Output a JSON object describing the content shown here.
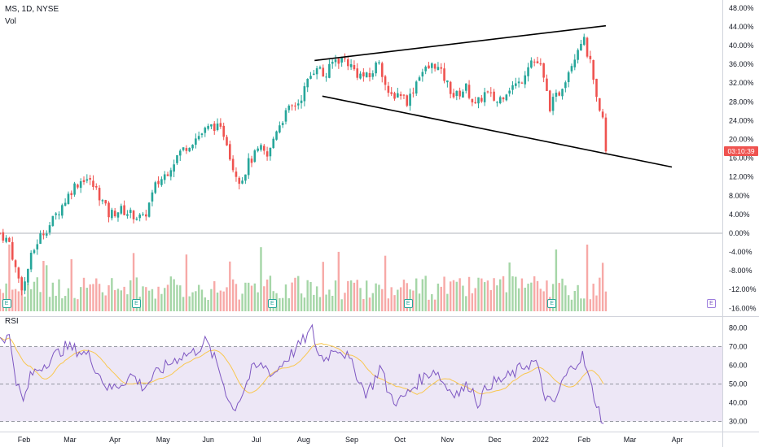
{
  "header": {
    "symbol_line": "MS, 1D, NYSE",
    "volume_label": "Vol"
  },
  "rsi_label": "RSI",
  "price_badge": {
    "text": "03:10:39",
    "color": "#ef5350"
  },
  "colors": {
    "up": "#26a69a",
    "down": "#ef5350",
    "vol_up": "#a5d6a7",
    "vol_down": "#f7a9a7",
    "rsi_line": "#7e57c2",
    "rsi_ma": "#f9c74f",
    "rsi_band": "#ede7f6",
    "trendline": "#000000"
  },
  "icons": {
    "earnings_marker": "E",
    "event_marker": "E"
  },
  "chart_data": [
    {
      "type": "candlestick",
      "title": "",
      "y_axis": {
        "unit": "percent",
        "ylim": [
          -17.5,
          49
        ],
        "ticks": [
          "48.00%",
          "44.00%",
          "40.00%",
          "36.00%",
          "32.00%",
          "28.00%",
          "24.00%",
          "20.00%",
          "16.00%",
          "12.00%",
          "8.00%",
          "4.00%",
          "0.00%",
          "-4.00%",
          "-8.00%",
          "-12.00%",
          "-16.00%"
        ]
      },
      "x_axis": {
        "ticks": [
          "Feb",
          "Mar",
          "Apr",
          "May",
          "Jun",
          "Jul",
          "Aug",
          "Sep",
          "Oct",
          "Nov",
          "Dec",
          "2022",
          "Feb",
          "Mar",
          "Apr"
        ],
        "tick_days": [
          31,
          90,
          148,
          210,
          268,
          330,
          391,
          453,
          515,
          576,
          637,
          696,
          752,
          811,
          872
        ],
        "xlim": [
          0,
          930
        ]
      },
      "series_anchors": [
        {
          "day": 0,
          "value": 0
        },
        {
          "day": 12,
          "value": -2
        },
        {
          "day": 22,
          "value": -9
        },
        {
          "day": 30,
          "value": -12
        },
        {
          "day": 38,
          "value": -6
        },
        {
          "day": 50,
          "value": -1
        },
        {
          "day": 65,
          "value": 2
        },
        {
          "day": 80,
          "value": 6
        },
        {
          "day": 95,
          "value": 10
        },
        {
          "day": 110,
          "value": 12
        },
        {
          "day": 125,
          "value": 9
        },
        {
          "day": 140,
          "value": 4
        },
        {
          "day": 155,
          "value": 5
        },
        {
          "day": 170,
          "value": 4
        },
        {
          "day": 185,
          "value": 3
        },
        {
          "day": 200,
          "value": 10
        },
        {
          "day": 215,
          "value": 13
        },
        {
          "day": 230,
          "value": 17
        },
        {
          "day": 250,
          "value": 20
        },
        {
          "day": 265,
          "value": 22
        },
        {
          "day": 275,
          "value": 23
        },
        {
          "day": 290,
          "value": 21
        },
        {
          "day": 300,
          "value": 14
        },
        {
          "day": 310,
          "value": 11
        },
        {
          "day": 320,
          "value": 15
        },
        {
          "day": 335,
          "value": 18
        },
        {
          "day": 345,
          "value": 16
        },
        {
          "day": 355,
          "value": 22
        },
        {
          "day": 370,
          "value": 26
        },
        {
          "day": 385,
          "value": 28
        },
        {
          "day": 398,
          "value": 33
        },
        {
          "day": 408,
          "value": 36
        },
        {
          "day": 418,
          "value": 33
        },
        {
          "day": 430,
          "value": 37
        },
        {
          "day": 445,
          "value": 37
        },
        {
          "day": 460,
          "value": 34
        },
        {
          "day": 475,
          "value": 33
        },
        {
          "day": 488,
          "value": 37
        },
        {
          "day": 500,
          "value": 29
        },
        {
          "day": 515,
          "value": 30
        },
        {
          "day": 525,
          "value": 28
        },
        {
          "day": 540,
          "value": 34
        },
        {
          "day": 560,
          "value": 36
        },
        {
          "day": 572,
          "value": 33
        },
        {
          "day": 585,
          "value": 29
        },
        {
          "day": 600,
          "value": 31
        },
        {
          "day": 612,
          "value": 27
        },
        {
          "day": 625,
          "value": 30
        },
        {
          "day": 640,
          "value": 28
        },
        {
          "day": 655,
          "value": 31
        },
        {
          "day": 670,
          "value": 32
        },
        {
          "day": 682,
          "value": 37
        },
        {
          "day": 695,
          "value": 36
        },
        {
          "day": 708,
          "value": 27
        },
        {
          "day": 720,
          "value": 30
        },
        {
          "day": 735,
          "value": 36
        },
        {
          "day": 750,
          "value": 42
        },
        {
          "day": 760,
          "value": 36
        },
        {
          "day": 770,
          "value": 26
        },
        {
          "day": 778,
          "value": 24
        },
        {
          "day": 780,
          "value": 17
        }
      ],
      "trendlines": [
        {
          "name": "upper-trendline",
          "from": {
            "day": 405,
            "value": 36.8
          },
          "to": {
            "day": 780,
            "value": 44.2
          }
        },
        {
          "name": "lower-trendline",
          "from": {
            "day": 415,
            "value": 29.2
          },
          "to": {
            "day": 865,
            "value": 14.1
          }
        }
      ],
      "earnings_marker_days": [
        8,
        175,
        350,
        525,
        710
      ]
    },
    {
      "type": "area",
      "name": "RSI",
      "y_axis": {
        "ylim": [
          25,
          85
        ],
        "ticks": [
          "80.00",
          "70.00",
          "60.00",
          "50.00",
          "40.00",
          "30.00"
        ],
        "band": [
          30,
          70
        ],
        "midline": 50
      },
      "rsi_anchors": [
        {
          "day": 0,
          "value": 75
        },
        {
          "day": 12,
          "value": 75
        },
        {
          "day": 22,
          "value": 50
        },
        {
          "day": 30,
          "value": 40
        },
        {
          "day": 40,
          "value": 55
        },
        {
          "day": 55,
          "value": 60
        },
        {
          "day": 70,
          "value": 65
        },
        {
          "day": 85,
          "value": 70
        },
        {
          "day": 100,
          "value": 68
        },
        {
          "day": 115,
          "value": 65
        },
        {
          "day": 128,
          "value": 55
        },
        {
          "day": 140,
          "value": 47
        },
        {
          "day": 155,
          "value": 50
        },
        {
          "day": 170,
          "value": 55
        },
        {
          "day": 185,
          "value": 48
        },
        {
          "day": 200,
          "value": 55
        },
        {
          "day": 215,
          "value": 60
        },
        {
          "day": 232,
          "value": 65
        },
        {
          "day": 250,
          "value": 67
        },
        {
          "day": 265,
          "value": 73
        },
        {
          "day": 280,
          "value": 60
        },
        {
          "day": 292,
          "value": 45
        },
        {
          "day": 300,
          "value": 36
        },
        {
          "day": 312,
          "value": 45
        },
        {
          "day": 325,
          "value": 58
        },
        {
          "day": 340,
          "value": 60
        },
        {
          "day": 352,
          "value": 55
        },
        {
          "day": 365,
          "value": 62
        },
        {
          "day": 380,
          "value": 68
        },
        {
          "day": 392,
          "value": 74
        },
        {
          "day": 402,
          "value": 79
        },
        {
          "day": 410,
          "value": 65
        },
        {
          "day": 420,
          "value": 64
        },
        {
          "day": 432,
          "value": 70
        },
        {
          "day": 445,
          "value": 66
        },
        {
          "day": 460,
          "value": 55
        },
        {
          "day": 470,
          "value": 45
        },
        {
          "day": 480,
          "value": 50
        },
        {
          "day": 490,
          "value": 60
        },
        {
          "day": 500,
          "value": 45
        },
        {
          "day": 512,
          "value": 40
        },
        {
          "day": 525,
          "value": 45
        },
        {
          "day": 540,
          "value": 52
        },
        {
          "day": 560,
          "value": 58
        },
        {
          "day": 575,
          "value": 48
        },
        {
          "day": 590,
          "value": 45
        },
        {
          "day": 605,
          "value": 50
        },
        {
          "day": 615,
          "value": 40
        },
        {
          "day": 630,
          "value": 50
        },
        {
          "day": 645,
          "value": 52
        },
        {
          "day": 660,
          "value": 55
        },
        {
          "day": 675,
          "value": 60
        },
        {
          "day": 690,
          "value": 62
        },
        {
          "day": 700,
          "value": 45
        },
        {
          "day": 712,
          "value": 38
        },
        {
          "day": 725,
          "value": 52
        },
        {
          "day": 738,
          "value": 60
        },
        {
          "day": 750,
          "value": 65
        },
        {
          "day": 760,
          "value": 50
        },
        {
          "day": 770,
          "value": 37
        },
        {
          "day": 778,
          "value": 28
        }
      ],
      "ma_period": 14
    }
  ]
}
